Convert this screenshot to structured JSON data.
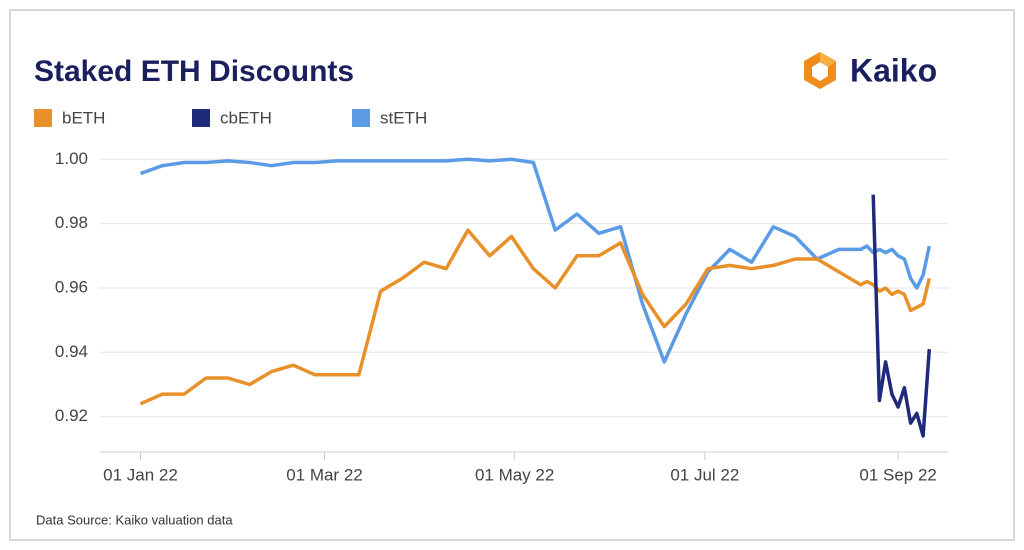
{
  "chart_data": {
    "type": "line",
    "title": "Staked ETH Discounts",
    "logo": "Kaiko",
    "source": "Data Source: Kaiko valuation data",
    "x": [
      "2022-01-01",
      "2022-01-08",
      "2022-01-15",
      "2022-01-22",
      "2022-01-29",
      "2022-02-05",
      "2022-02-12",
      "2022-02-19",
      "2022-02-26",
      "2022-03-05",
      "2022-03-12",
      "2022-03-19",
      "2022-03-26",
      "2022-04-02",
      "2022-04-09",
      "2022-04-16",
      "2022-04-23",
      "2022-04-30",
      "2022-05-07",
      "2022-05-14",
      "2022-05-21",
      "2022-05-28",
      "2022-06-04",
      "2022-06-11",
      "2022-06-18",
      "2022-06-25",
      "2022-07-02",
      "2022-07-09",
      "2022-07-16",
      "2022-07-23",
      "2022-07-30",
      "2022-08-06",
      "2022-08-13",
      "2022-08-20",
      "2022-08-22",
      "2022-08-24",
      "2022-08-26",
      "2022-08-28",
      "2022-08-30",
      "2022-09-01",
      "2022-09-03",
      "2022-09-05",
      "2022-09-07",
      "2022-09-09",
      "2022-09-11"
    ],
    "series": [
      {
        "name": "bETH",
        "color": "#e8902a",
        "values": [
          0.924,
          0.927,
          0.927,
          0.932,
          0.932,
          0.93,
          0.934,
          0.936,
          0.933,
          0.933,
          0.933,
          0.959,
          0.963,
          0.968,
          0.966,
          0.978,
          0.97,
          0.976,
          0.966,
          0.96,
          0.97,
          0.97,
          0.974,
          0.958,
          0.948,
          0.955,
          0.966,
          0.967,
          0.966,
          0.967,
          0.969,
          0.969,
          0.965,
          0.961,
          0.962,
          0.961,
          0.959,
          0.96,
          0.958,
          0.959,
          0.958,
          0.953,
          0.954,
          0.955,
          0.963
        ]
      },
      {
        "name": "cbETH",
        "color": "#1f2a7a",
        "values": [
          null,
          null,
          null,
          null,
          null,
          null,
          null,
          null,
          null,
          null,
          null,
          null,
          null,
          null,
          null,
          null,
          null,
          null,
          null,
          null,
          null,
          null,
          null,
          null,
          null,
          null,
          null,
          null,
          null,
          null,
          null,
          null,
          null,
          null,
          null,
          0.989,
          0.925,
          0.937,
          0.927,
          0.923,
          0.929,
          0.918,
          0.921,
          0.914,
          0.941
        ]
      },
      {
        "name": "stETH",
        "color": "#5b9be6",
        "values": [
          0.9956,
          0.998,
          0.999,
          0.999,
          0.9995,
          0.999,
          0.998,
          0.999,
          0.999,
          0.9995,
          0.9995,
          0.9995,
          0.9995,
          0.9995,
          0.9995,
          1.0,
          0.9995,
          1.0,
          0.999,
          0.978,
          0.983,
          0.977,
          0.979,
          0.955,
          0.937,
          0.952,
          0.965,
          0.972,
          0.968,
          0.979,
          0.976,
          0.969,
          0.972,
          0.972,
          0.973,
          0.971,
          0.972,
          0.971,
          0.972,
          0.97,
          0.969,
          0.963,
          0.96,
          0.964,
          0.973
        ]
      }
    ],
    "xlim": [
      "2021-12-19",
      "2022-09-17"
    ],
    "xticks": [
      {
        "value": "2022-01-01",
        "label": "01 Jan 22"
      },
      {
        "value": "2022-03-01",
        "label": "01 Mar 22"
      },
      {
        "value": "2022-05-01",
        "label": "01 May 22"
      },
      {
        "value": "2022-07-01",
        "label": "01 Jul 22"
      },
      {
        "value": "2022-09-01",
        "label": "01 Sep 22"
      }
    ],
    "ylim": [
      0.909,
      1.006
    ],
    "yticks": [
      0.92,
      0.94,
      0.96,
      0.98,
      {
        "value": 1,
        "label": "1.00"
      }
    ],
    "grid": true,
    "legend": "top-left"
  }
}
